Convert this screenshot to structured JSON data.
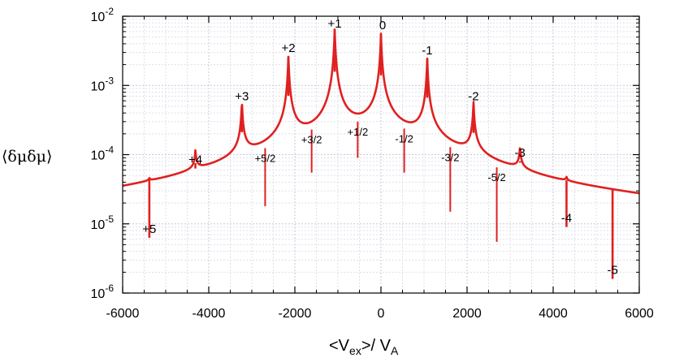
{
  "chart_data": {
    "type": "line",
    "title": "",
    "xlabel": {
      "lead": "<V",
      "sub": "ex",
      "mid": ">/ V",
      "sub2": "A"
    },
    "ylabel": "⟨δμδμ⟩",
    "xlim": [
      -6000,
      6000
    ],
    "ylim": [
      1e-06,
      0.01
    ],
    "y_scale": "log",
    "grid": true,
    "line_color": "#e02020",
    "x_ticks": [
      -6000,
      -4000,
      -2000,
      0,
      2000,
      4000,
      6000
    ],
    "x_tick_labels": [
      "-6000",
      "-4000",
      "-2000",
      "0",
      "2000",
      "4000",
      "6000"
    ],
    "y_ticks": [
      {
        "value": 0.01,
        "mantissa": "10",
        "exp": "-2"
      },
      {
        "value": 0.001,
        "mantissa": "10",
        "exp": "-3"
      },
      {
        "value": 0.0001,
        "mantissa": "10",
        "exp": "-4"
      },
      {
        "value": 1e-05,
        "mantissa": "10",
        "exp": "-5"
      },
      {
        "value": 1e-06,
        "mantissa": "10",
        "exp": "-6"
      }
    ],
    "background_level": {
      "x": [
        -6000,
        -4300,
        0,
        4300,
        6000
      ],
      "y": [
        1.4e-06,
        4e-06,
        0.0001,
        2.8e-06,
        1.1e-06
      ]
    },
    "integer_resonances": [
      {
        "label": "+5",
        "x": -5380,
        "peak": 6.3e-06
      },
      {
        "label": "+4",
        "x": -4310,
        "peak": 6.3e-05
      },
      {
        "label": "+3",
        "x": -3230,
        "peak": 0.00052
      },
      {
        "label": "+2",
        "x": -2150,
        "peak": 0.0026
      },
      {
        "label": "+1",
        "x": -1075,
        "peak": 0.0065
      },
      {
        "label": "0",
        "x": 0,
        "peak": 0.0055
      },
      {
        "label": "-1",
        "x": 1075,
        "peak": 0.0024
      },
      {
        "label": "-2",
        "x": 2150,
        "peak": 0.00052
      },
      {
        "label": "-3",
        "x": 3230,
        "peak": 8e-05
      },
      {
        "label": "-4",
        "x": 4310,
        "peak": 9e-06
      },
      {
        "label": "-5",
        "x": 5380,
        "peak": 1.6e-06
      }
    ],
    "half_resonances": [
      {
        "label": "+5/2",
        "x": -2690,
        "peak": 1.8e-05
      },
      {
        "label": "+3/2",
        "x": -1610,
        "peak": 5.5e-05
      },
      {
        "label": "+1/2",
        "x": -540,
        "peak": 9e-05
      },
      {
        "label": "-1/2",
        "x": 540,
        "peak": 5.5e-05
      },
      {
        "label": "-3/2",
        "x": 1610,
        "peak": 1.5e-05
      },
      {
        "label": "-5/2",
        "x": 2690,
        "peak": 5.5e-06
      }
    ]
  }
}
